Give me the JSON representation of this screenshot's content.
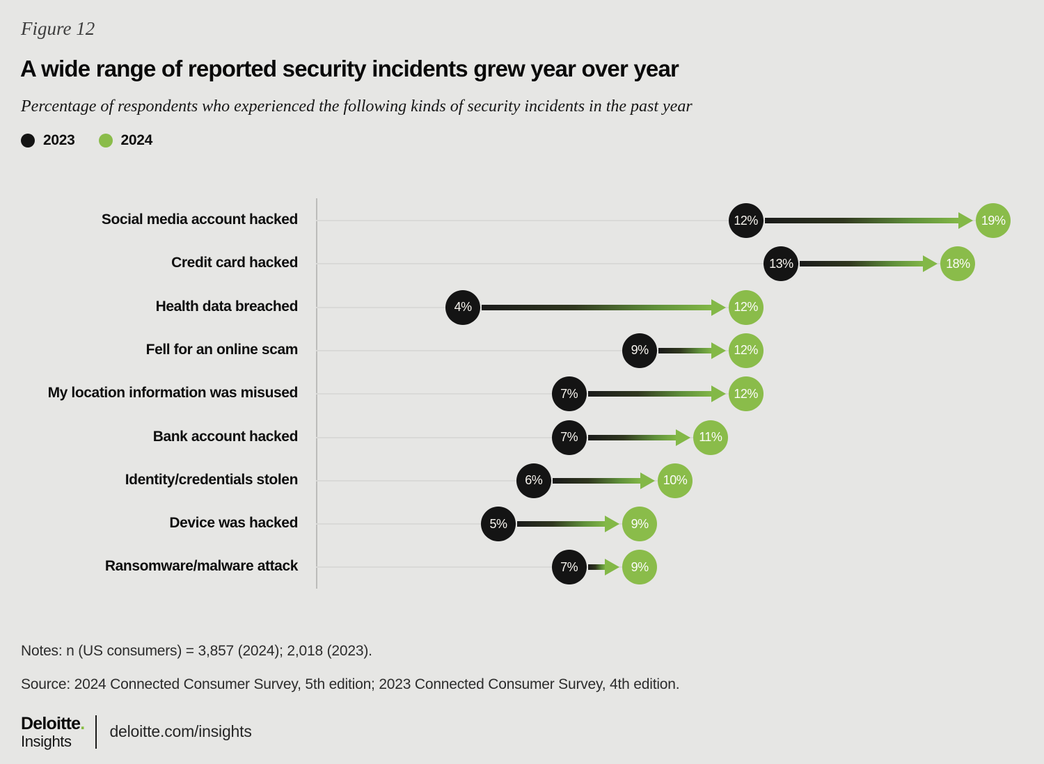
{
  "figure_label": "Figure 12",
  "title": "A wide range of reported security incidents grew year over year",
  "subtitle": "Percentage of respondents who experienced the following kinds of security incidents in the past year",
  "legend": [
    {
      "label": "2023",
      "color": "#141414"
    },
    {
      "label": "2024",
      "color": "#8abc4a"
    }
  ],
  "colors": {
    "background": "#e6e6e4",
    "dot_2023": "#141414",
    "dot_2024": "#8abc4a",
    "arrow_dark": "#1a1a1a",
    "arrow_green": "#83b847",
    "gridline": "#d9d9d7",
    "axis": "#bcbcba"
  },
  "chart_data": {
    "type": "dumbbell-arrow",
    "title": "A wide range of reported security incidents grew year over year",
    "xlabel": "Percentage of respondents",
    "value_format": "percent",
    "xlim": [
      0,
      20
    ],
    "categories": [
      "Social media account hacked",
      "Credit card hacked",
      "Health data breached",
      "Fell for an online scam",
      "My location information was misused",
      "Bank account hacked",
      "Identity/credentials stolen",
      "Device was hacked",
      "Ransomware/malware attack"
    ],
    "series": [
      {
        "name": "2023",
        "values": [
          12,
          13,
          4,
          9,
          7,
          7,
          6,
          5,
          7
        ]
      },
      {
        "name": "2024",
        "values": [
          19,
          18,
          12,
          12,
          12,
          11,
          10,
          9,
          9
        ]
      }
    ],
    "legend_position": "top-left",
    "grid": "per-row horizontal leader lines from axis to 2024 value"
  },
  "notes": "Notes: n (US consumers) = 3,857 (2024); 2,018 (2023).",
  "source": "Source: 2024 Connected Consumer Survey, 5th edition; 2023 Connected Consumer Survey, 4th edition.",
  "footer": {
    "brand": "Deloitte",
    "brand_dot": ".",
    "brand_sub": "Insights",
    "link": "deloitte.com/insights"
  }
}
